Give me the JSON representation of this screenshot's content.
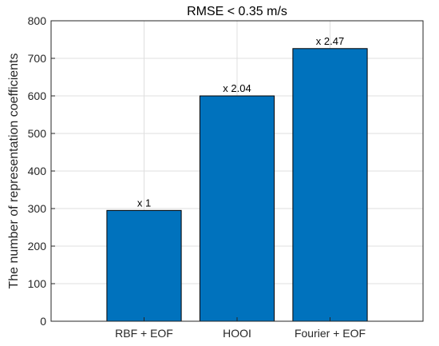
{
  "chart_data": {
    "type": "bar",
    "title": "RMSE < 0.35 m/s",
    "xlabel": "",
    "ylabel": "The number of representation coefficients",
    "categories": [
      "RBF + EOF",
      "HOOI",
      "Fourier + EOF"
    ],
    "values": [
      295,
      600,
      726
    ],
    "data_labels": [
      "x 1",
      "x 2.04",
      "x 2.47"
    ],
    "ylim": [
      0,
      800
    ],
    "yticks": [
      0,
      100,
      200,
      300,
      400,
      500,
      600,
      700,
      800
    ],
    "grid": true,
    "bar_color": "#0072BD",
    "bar_edge_color": "#000000"
  }
}
